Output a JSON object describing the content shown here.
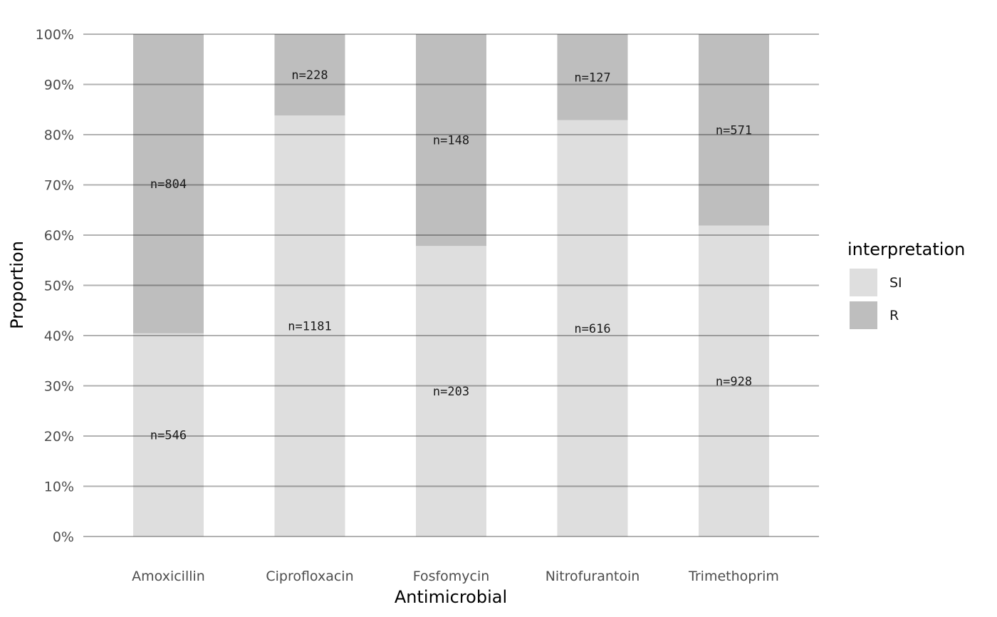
{
  "chart_data": {
    "type": "bar",
    "stacked": true,
    "normalized": true,
    "categories": [
      "Amoxicillin",
      "Ciprofloxacin",
      "Fosfomycin",
      "Nitrofurantoin",
      "Trimethoprim"
    ],
    "series": [
      {
        "name": "SI",
        "color": "#dedede",
        "counts": [
          546,
          1181,
          203,
          616,
          928
        ]
      },
      {
        "name": "R",
        "color": "#bebebe",
        "counts": [
          804,
          228,
          148,
          127,
          571
        ]
      }
    ],
    "xlabel": "Antimicrobial",
    "ylabel": "Proportion",
    "ylim": [
      0,
      1
    ],
    "yticks": [
      "0%",
      "10%",
      "20%",
      "30%",
      "40%",
      "50%",
      "60%",
      "70%",
      "80%",
      "90%",
      "100%"
    ],
    "grid": true,
    "legend": {
      "title": "interpretation",
      "position": "right",
      "entries": [
        "SI",
        "R"
      ]
    },
    "count_prefix": "n="
  }
}
